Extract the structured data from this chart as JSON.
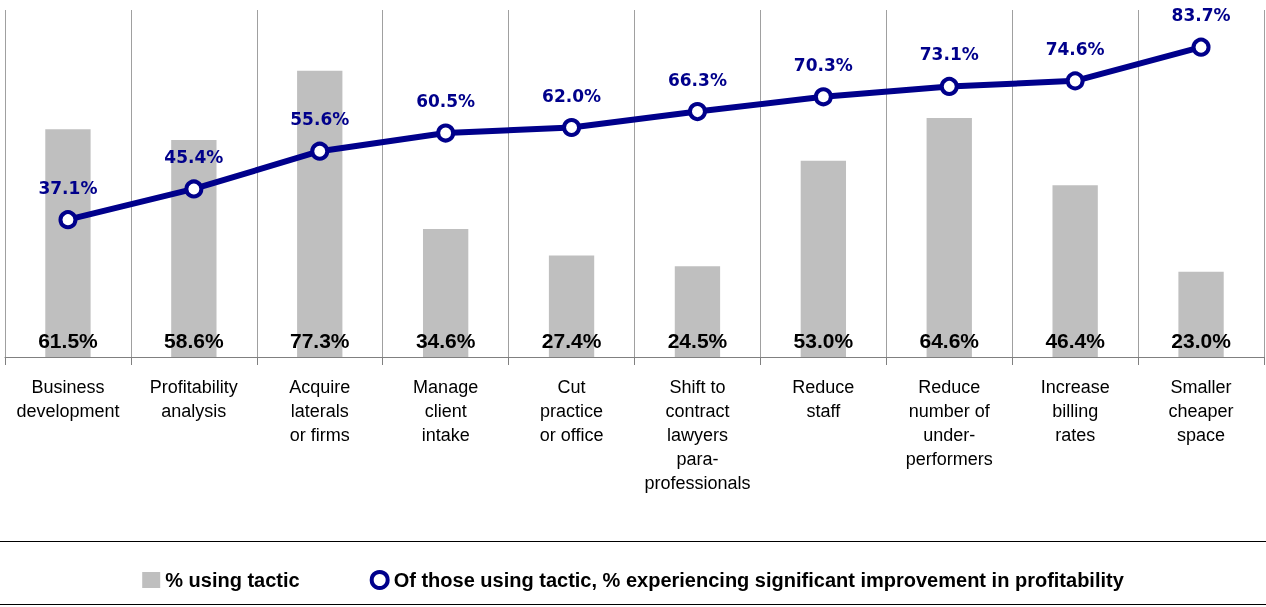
{
  "chart_data": {
    "type": "bar",
    "categories": [
      "Business development",
      "Profitability analysis",
      "Acquire laterals or firms",
      "Manage client intake",
      "Cut practice or office",
      "Shift to contract lawyers para-professionals",
      "Reduce staff",
      "Reduce number of under-performers",
      "Increase billing rates",
      "Smaller cheaper space"
    ],
    "series": [
      {
        "name": "% using tactic",
        "color": "#bfbfbf",
        "values": [
          61.5,
          58.6,
          77.3,
          34.6,
          27.4,
          24.5,
          53.0,
          64.6,
          46.4,
          23.0
        ],
        "value_labels": [
          "61.5%",
          "58.6%",
          "77.3%",
          "34.6%",
          "27.4%",
          "24.5%",
          "53.0%",
          "64.6%",
          "46.4%",
          "23.0%"
        ]
      },
      {
        "name": "Of those using tactic, % experiencing significant improvement in profitability",
        "type": "line",
        "color": "#00008b",
        "values": [
          37.1,
          45.4,
          55.6,
          60.5,
          62.0,
          66.3,
          70.3,
          73.1,
          74.6,
          83.7
        ],
        "value_labels": [
          "37.1%",
          "45.4%",
          "55.6%",
          "60.5%",
          "62.0%",
          "66.3%",
          "70.3%",
          "73.1%",
          "74.6%",
          "83.7%"
        ]
      }
    ],
    "grid": "x",
    "legend": "bottom",
    "marker": "circle",
    "line_style": "solid"
  }
}
